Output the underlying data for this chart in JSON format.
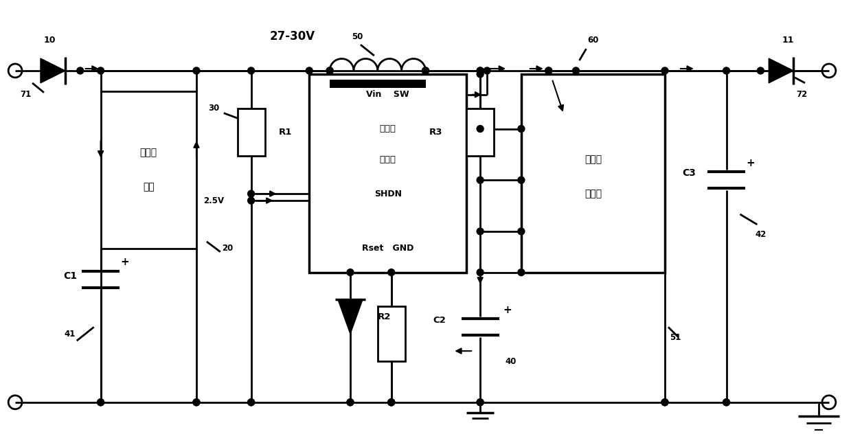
{
  "bg_color": "#ffffff",
  "label_10": "10",
  "label_11": "11",
  "label_20": "20",
  "label_27_30V": "27-30V",
  "label_30": "30",
  "label_40": "40",
  "label_41": "41",
  "label_42": "42",
  "label_50": "50",
  "label_51": "51",
  "label_60": "60",
  "label_71": "71",
  "label_72": "72",
  "label_R1": "R1",
  "label_R2": "R2",
  "label_R3": "R3",
  "label_C1": "C1",
  "label_C2": "C2",
  "label_C3": "C3",
  "label_booster1": "升压器",
  "label_booster2": "模块",
  "label_chip1_pins": "Vin    SW",
  "label_chip1_line2": "第一控",
  "label_chip1_line3": "制芯片",
  "label_chip1_shdn": "SHDN",
  "label_chip1_rset": "Rset   GND",
  "label_chip2_line1": "第二控",
  "label_chip2_line2": "制芯片",
  "label_2_5V": "2.5V"
}
